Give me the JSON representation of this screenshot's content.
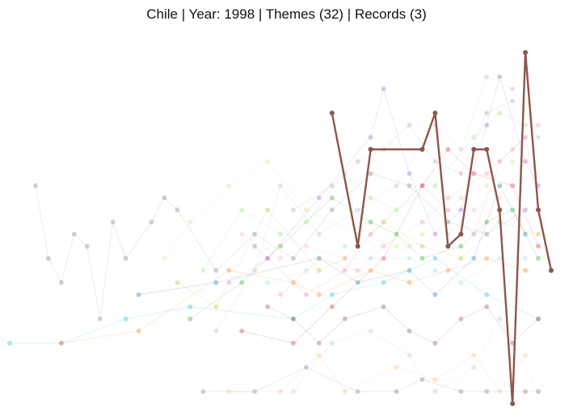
{
  "chart_data": {
    "type": "line",
    "title": "Chile | Year: 1998 | Themes (32) | Records (3)",
    "xlabel": "",
    "ylabel": "",
    "grid": false,
    "legend": "none",
    "x": [
      0,
      1,
      2,
      3,
      4,
      5,
      6,
      7,
      8,
      9,
      10,
      11,
      12,
      13,
      14,
      15,
      16,
      17,
      18,
      19,
      20,
      21,
      22,
      23,
      24,
      25,
      26,
      27,
      28,
      29,
      30,
      31,
      32,
      33,
      34,
      35,
      36,
      37,
      38,
      39,
      40,
      41,
      42
    ],
    "xlim": [
      0,
      42
    ],
    "ylim": [
      0,
      32
    ],
    "highlight": {
      "color": "#8c564b",
      "points": [
        [
          25,
          24
        ],
        [
          27,
          13
        ],
        [
          28,
          21
        ],
        [
          32,
          21
        ],
        [
          33,
          24
        ],
        [
          34,
          13
        ],
        [
          35,
          14
        ],
        [
          36,
          21
        ],
        [
          37,
          21
        ],
        [
          38,
          16
        ],
        [
          39,
          0
        ],
        [
          40,
          29
        ],
        [
          41,
          16
        ],
        [
          42,
          11
        ]
      ]
    },
    "background_series": [
      {
        "color": "#17becf",
        "points": [
          [
            0,
            5
          ],
          [
            4,
            5
          ],
          [
            9,
            7
          ],
          [
            14,
            8
          ],
          [
            22,
            7
          ],
          [
            25,
            9
          ],
          [
            29,
            10
          ],
          [
            33,
            12
          ],
          [
            37,
            9
          ],
          [
            41,
            7
          ]
        ]
      },
      {
        "color": "#ff7f0e",
        "points": [
          [
            4,
            5
          ],
          [
            10,
            6
          ],
          [
            17,
            11
          ],
          [
            22,
            10
          ],
          [
            24,
            9
          ],
          [
            28,
            11
          ],
          [
            31,
            10
          ],
          [
            34,
            11
          ],
          [
            37,
            12
          ],
          [
            40,
            11
          ]
        ]
      },
      {
        "color": "#bcbd22",
        "points": [
          [
            13,
            10
          ],
          [
            16,
            8
          ],
          [
            20,
            16
          ],
          [
            24,
            11
          ],
          [
            26,
            12
          ],
          [
            29,
            15
          ],
          [
            32,
            13
          ],
          [
            35,
            12
          ],
          [
            38,
            15
          ],
          [
            41,
            14
          ]
        ]
      },
      {
        "color": "#7f7f7f",
        "points": [
          [
            2,
            18
          ],
          [
            3,
            12
          ],
          [
            4,
            10
          ],
          [
            5,
            14
          ],
          [
            6,
            13
          ],
          [
            7,
            7
          ],
          [
            8,
            15
          ],
          [
            9,
            12
          ],
          [
            11,
            15
          ],
          [
            12,
            17
          ],
          [
            13,
            16
          ],
          [
            16,
            11
          ],
          [
            19,
            14
          ],
          [
            22,
            12
          ],
          [
            25,
            16
          ],
          [
            28,
            19
          ],
          [
            31,
            18
          ],
          [
            34,
            15
          ],
          [
            37,
            14
          ],
          [
            40,
            16
          ]
        ]
      },
      {
        "color": "#9467bd",
        "points": [
          [
            19,
            13
          ],
          [
            20,
            12
          ],
          [
            24,
            17
          ],
          [
            28,
            22
          ],
          [
            29,
            26
          ],
          [
            31,
            19
          ],
          [
            33,
            14
          ],
          [
            35,
            16
          ],
          [
            37,
            23
          ],
          [
            38,
            27
          ],
          [
            40,
            20
          ],
          [
            41,
            18
          ]
        ]
      },
      {
        "color": "#e377c2",
        "points": [
          [
            17,
            10
          ],
          [
            20,
            12
          ],
          [
            23,
            9
          ],
          [
            26,
            11
          ],
          [
            28,
            14
          ],
          [
            32,
            18
          ],
          [
            34,
            16
          ],
          [
            36,
            14
          ],
          [
            38,
            20
          ],
          [
            40,
            22
          ],
          [
            42,
            11
          ]
        ]
      },
      {
        "color": "#d62728",
        "points": [
          [
            18,
            6
          ],
          [
            22,
            5
          ],
          [
            25,
            8
          ],
          [
            29,
            12
          ],
          [
            32,
            18
          ],
          [
            34,
            21
          ],
          [
            36,
            19
          ],
          [
            39,
            18
          ],
          [
            41,
            13
          ]
        ]
      },
      {
        "color": "#2ca02c",
        "points": [
          [
            14,
            7
          ],
          [
            18,
            10
          ],
          [
            21,
            13
          ],
          [
            25,
            17
          ],
          [
            28,
            15
          ],
          [
            30,
            14
          ],
          [
            32,
            12
          ],
          [
            35,
            13
          ],
          [
            37,
            15
          ],
          [
            39,
            16
          ],
          [
            41,
            12
          ]
        ]
      },
      {
        "color": "#1f77b4",
        "points": [
          [
            10,
            9
          ],
          [
            16,
            10
          ],
          [
            24,
            12
          ],
          [
            27,
            10
          ],
          [
            31,
            11
          ],
          [
            33,
            9
          ],
          [
            36,
            12
          ],
          [
            38,
            18
          ],
          [
            40,
            14
          ]
        ]
      },
      {
        "color": "#8c564b",
        "points": [
          [
            20,
            8
          ],
          [
            22,
            7
          ],
          [
            24,
            5
          ],
          [
            26,
            7
          ],
          [
            29,
            8
          ],
          [
            31,
            6
          ],
          [
            33,
            5
          ],
          [
            35,
            7
          ],
          [
            37,
            8
          ],
          [
            39,
            5
          ],
          [
            41,
            7
          ]
        ]
      },
      {
        "color": "#7f7f7f",
        "points": [
          [
            15,
            1
          ],
          [
            19,
            1
          ],
          [
            23,
            3
          ],
          [
            27,
            1
          ],
          [
            30,
            1
          ],
          [
            32,
            2
          ],
          [
            35,
            1
          ],
          [
            37,
            1
          ],
          [
            40,
            1
          ],
          [
            41,
            1
          ]
        ]
      },
      {
        "color": "#ffbb78",
        "points": [
          [
            17,
            1
          ],
          [
            21,
            1
          ],
          [
            24,
            4
          ],
          [
            26,
            1
          ],
          [
            30,
            3
          ],
          [
            33,
            2
          ],
          [
            36,
            4
          ],
          [
            38,
            1
          ],
          [
            40,
            4
          ]
        ]
      },
      {
        "color": "#aec7e8",
        "points": [
          [
            22,
            1
          ],
          [
            25,
            5
          ],
          [
            28,
            6
          ],
          [
            31,
            4
          ],
          [
            33,
            1
          ],
          [
            36,
            3
          ],
          [
            38,
            7
          ],
          [
            41,
            1
          ]
        ]
      },
      {
        "color": "#c5b0d5",
        "points": [
          [
            16,
            6
          ],
          [
            19,
            11
          ],
          [
            21,
            18
          ],
          [
            24,
            14
          ],
          [
            27,
            16
          ],
          [
            30,
            18
          ],
          [
            33,
            23
          ],
          [
            35,
            21
          ],
          [
            37,
            27
          ],
          [
            39,
            26
          ],
          [
            41,
            22
          ]
        ]
      },
      {
        "color": "#98df8a",
        "points": [
          [
            15,
            11
          ],
          [
            18,
            16
          ],
          [
            21,
            14
          ],
          [
            23,
            15
          ],
          [
            26,
            19
          ],
          [
            28,
            17
          ],
          [
            30,
            16
          ],
          [
            33,
            18
          ],
          [
            36,
            22
          ],
          [
            38,
            24
          ],
          [
            40,
            23
          ]
        ]
      },
      {
        "color": "#f7b6d2",
        "points": [
          [
            18,
            14
          ],
          [
            21,
            12
          ],
          [
            23,
            13
          ],
          [
            26,
            12
          ],
          [
            29,
            12
          ],
          [
            31,
            13
          ],
          [
            34,
            14
          ],
          [
            36,
            16
          ],
          [
            38,
            17
          ],
          [
            40,
            20
          ]
        ]
      },
      {
        "color": "#dbdb8d",
        "points": [
          [
            12,
            12
          ],
          [
            14,
            15
          ],
          [
            17,
            18
          ],
          [
            20,
            20
          ],
          [
            23,
            16
          ],
          [
            27,
            14
          ],
          [
            30,
            13
          ],
          [
            32,
            14
          ],
          [
            35,
            17
          ],
          [
            37,
            18
          ],
          [
            39,
            20
          ]
        ]
      },
      {
        "color": "#9edae5",
        "points": [
          [
            20,
            10
          ],
          [
            23,
            11
          ],
          [
            26,
            13
          ],
          [
            28,
            12
          ],
          [
            31,
            12
          ],
          [
            33,
            11
          ],
          [
            35,
            10
          ],
          [
            38,
            12
          ],
          [
            40,
            12
          ]
        ]
      },
      {
        "color": "#ff9896",
        "points": [
          [
            21,
            9
          ],
          [
            24,
            12
          ],
          [
            27,
            11
          ],
          [
            29,
            13
          ],
          [
            32,
            15
          ],
          [
            34,
            17
          ],
          [
            37,
            19
          ],
          [
            39,
            21
          ],
          [
            41,
            23
          ]
        ]
      },
      {
        "color": "#c49c94",
        "points": [
          [
            22,
            16
          ],
          [
            25,
            18
          ],
          [
            27,
            20
          ],
          [
            29,
            21
          ],
          [
            31,
            23
          ],
          [
            33,
            20
          ],
          [
            35,
            19
          ],
          [
            37,
            24
          ],
          [
            39,
            25
          ]
        ]
      }
    ]
  }
}
